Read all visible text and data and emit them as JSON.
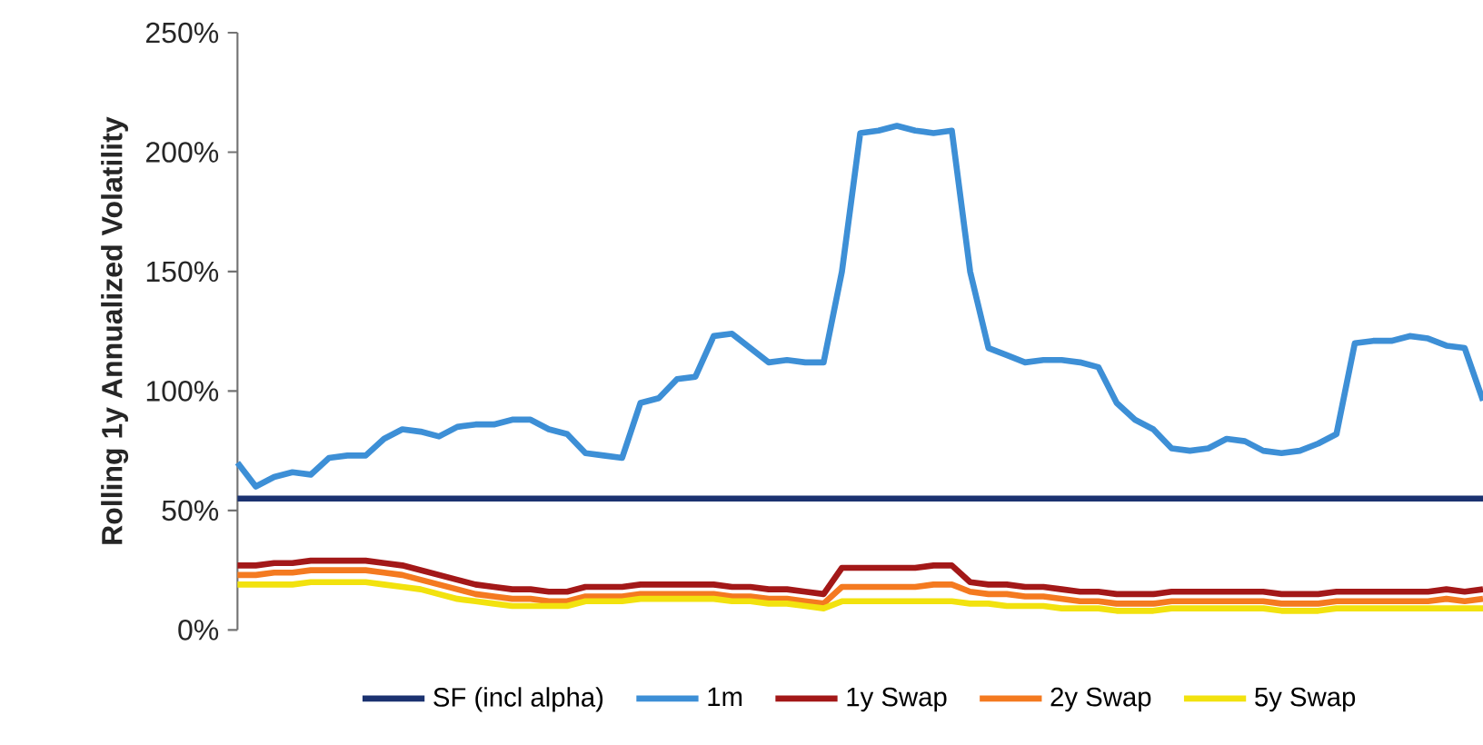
{
  "chart_data": {
    "type": "line",
    "ylabel": "Rolling 1y Annualized Volatility",
    "categories": [
      null,
      null,
      null,
      null,
      null,
      null,
      null,
      null,
      null,
      null,
      null,
      null,
      null,
      null,
      null,
      null,
      null,
      null,
      null,
      null,
      null,
      null,
      null,
      null,
      null,
      null,
      null,
      null,
      null,
      null,
      null,
      null,
      null,
      null,
      null,
      null,
      null,
      null,
      null,
      null,
      null,
      null,
      null,
      null,
      null,
      null,
      null,
      null,
      null,
      null,
      null,
      null,
      null,
      null,
      null,
      null,
      null,
      null,
      null,
      null,
      null,
      null,
      null,
      null,
      null,
      null,
      null,
      null,
      null
    ],
    "ylim": [
      0,
      250
    ],
    "yticks": [
      {
        "value": 0,
        "label": "0%"
      },
      {
        "value": 50,
        "label": "50%"
      },
      {
        "value": 100,
        "label": "100%"
      },
      {
        "value": 150,
        "label": "150%"
      },
      {
        "value": 200,
        "label": "200%"
      },
      {
        "value": 250,
        "label": "250%"
      }
    ],
    "tick_labels": "y",
    "grid": false,
    "legend": "bottom",
    "marker": "none",
    "line_style": "solid",
    "series": [
      {
        "name": "SF (incl alpha)",
        "color": "#1b3270",
        "values": [
          55,
          55,
          55,
          55,
          55,
          55,
          55,
          55,
          55,
          55,
          55,
          55,
          55,
          55,
          55,
          55,
          55,
          55,
          55,
          55,
          55,
          55,
          55,
          55,
          55,
          55,
          55,
          55,
          55,
          55,
          55,
          55,
          55,
          55,
          55,
          55,
          55,
          55,
          55,
          55,
          55,
          55,
          55,
          55,
          55,
          55,
          55,
          55,
          55,
          55,
          55,
          55,
          55,
          55,
          55,
          55,
          55,
          55,
          55,
          55,
          55,
          55,
          55,
          55,
          55,
          55,
          55,
          55,
          55
        ]
      },
      {
        "name": "1m",
        "color": "#3d8fd6",
        "values": [
          70,
          60,
          64,
          66,
          65,
          72,
          73,
          73,
          80,
          84,
          83,
          81,
          85,
          86,
          86,
          88,
          88,
          84,
          82,
          74,
          73,
          72,
          95,
          97,
          105,
          106,
          123,
          124,
          118,
          112,
          113,
          112,
          112,
          150,
          208,
          209,
          211,
          209,
          208,
          209,
          150,
          118,
          115,
          112,
          113,
          113,
          112,
          110,
          95,
          88,
          84,
          76,
          75,
          76,
          80,
          79,
          75,
          74,
          75,
          78,
          82,
          120,
          121,
          121,
          123,
          122,
          119,
          118,
          96
        ]
      },
      {
        "name": "1y Swap",
        "color": "#a31818",
        "values": [
          27,
          27,
          28,
          28,
          29,
          29,
          29,
          29,
          28,
          27,
          25,
          23,
          21,
          19,
          18,
          17,
          17,
          16,
          16,
          18,
          18,
          18,
          19,
          19,
          19,
          19,
          19,
          18,
          18,
          17,
          17,
          16,
          15,
          26,
          26,
          26,
          26,
          26,
          27,
          27,
          20,
          19,
          19,
          18,
          18,
          17,
          16,
          16,
          15,
          15,
          15,
          16,
          16,
          16,
          16,
          16,
          16,
          15,
          15,
          15,
          16,
          16,
          16,
          16,
          16,
          16,
          17,
          16,
          17
        ]
      },
      {
        "name": "2y Swap",
        "color": "#f47a20",
        "values": [
          23,
          23,
          24,
          24,
          25,
          25,
          25,
          25,
          24,
          23,
          21,
          19,
          17,
          15,
          14,
          13,
          13,
          12,
          12,
          14,
          14,
          14,
          15,
          15,
          15,
          15,
          15,
          14,
          14,
          13,
          13,
          12,
          11,
          18,
          18,
          18,
          18,
          18,
          19,
          19,
          16,
          15,
          15,
          14,
          14,
          13,
          12,
          12,
          11,
          11,
          11,
          12,
          12,
          12,
          12,
          12,
          12,
          11,
          11,
          11,
          12,
          12,
          12,
          12,
          12,
          12,
          13,
          12,
          13
        ]
      },
      {
        "name": "5y Swap",
        "color": "#f2e20e",
        "values": [
          19,
          19,
          19,
          19,
          20,
          20,
          20,
          20,
          19,
          18,
          17,
          15,
          13,
          12,
          11,
          10,
          10,
          10,
          10,
          12,
          12,
          12,
          13,
          13,
          13,
          13,
          13,
          12,
          12,
          11,
          11,
          10,
          9,
          12,
          12,
          12,
          12,
          12,
          12,
          12,
          11,
          11,
          10,
          10,
          10,
          9,
          9,
          9,
          8,
          8,
          8,
          9,
          9,
          9,
          9,
          9,
          9,
          8,
          8,
          8,
          9,
          9,
          9,
          9,
          9,
          9,
          9,
          9,
          9
        ]
      }
    ]
  }
}
